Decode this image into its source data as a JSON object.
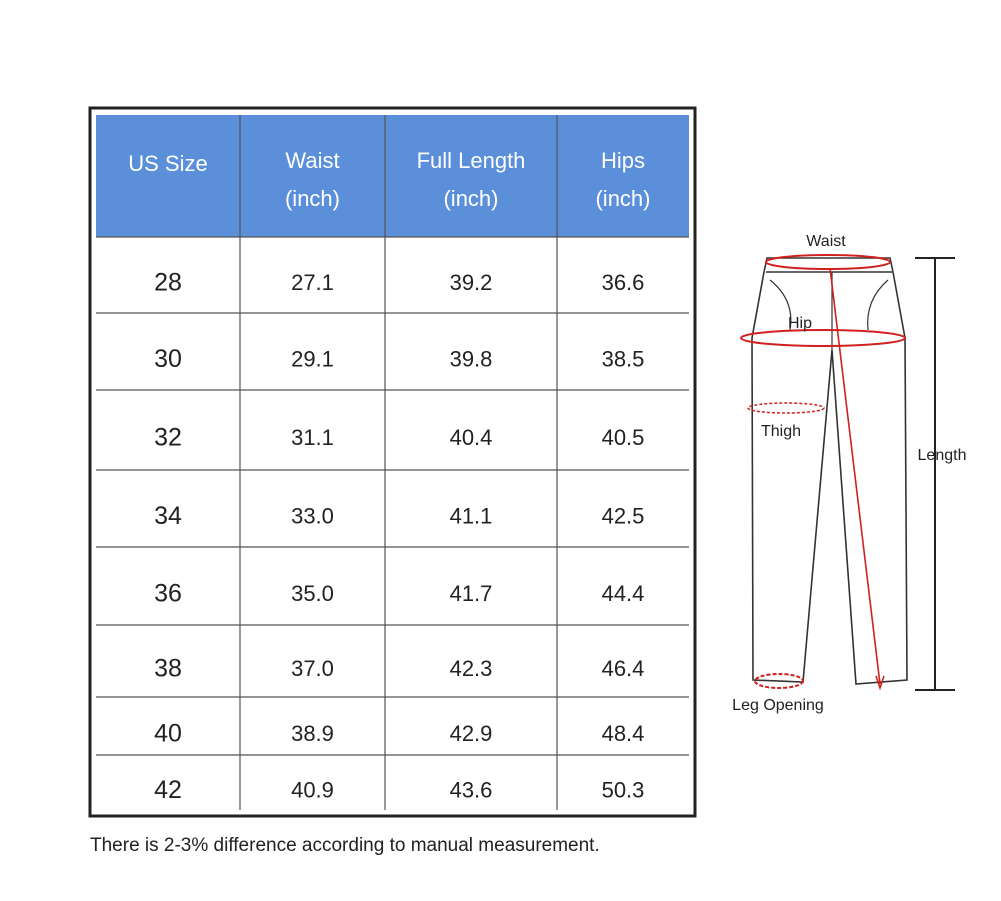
{
  "table": {
    "header": [
      [
        "US Size"
      ],
      [
        "Waist",
        "(inch)"
      ],
      [
        "Full Length",
        "(inch)"
      ],
      [
        "Hips",
        "(inch)"
      ]
    ],
    "rows": [
      [
        "28",
        "27.1",
        "39.2",
        "36.6"
      ],
      [
        "30",
        "29.1",
        "39.8",
        "38.5"
      ],
      [
        "32",
        "31.1",
        "40.4",
        "40.5"
      ],
      [
        "34",
        "33.0",
        "41.1",
        "42.5"
      ],
      [
        "36",
        "35.0",
        "41.7",
        "44.4"
      ],
      [
        "38",
        "37.0",
        "42.3",
        "46.4"
      ],
      [
        "40",
        "38.9",
        "42.9",
        "48.4"
      ],
      [
        "42",
        "40.9",
        "43.6",
        "50.3"
      ]
    ]
  },
  "note": "There is 2-3% difference according to manual measurement.",
  "diagram": {
    "waist": "Waist",
    "hip": "Hip",
    "thigh": "Thigh",
    "length": "Length",
    "leg_opening": "Leg Opening"
  }
}
